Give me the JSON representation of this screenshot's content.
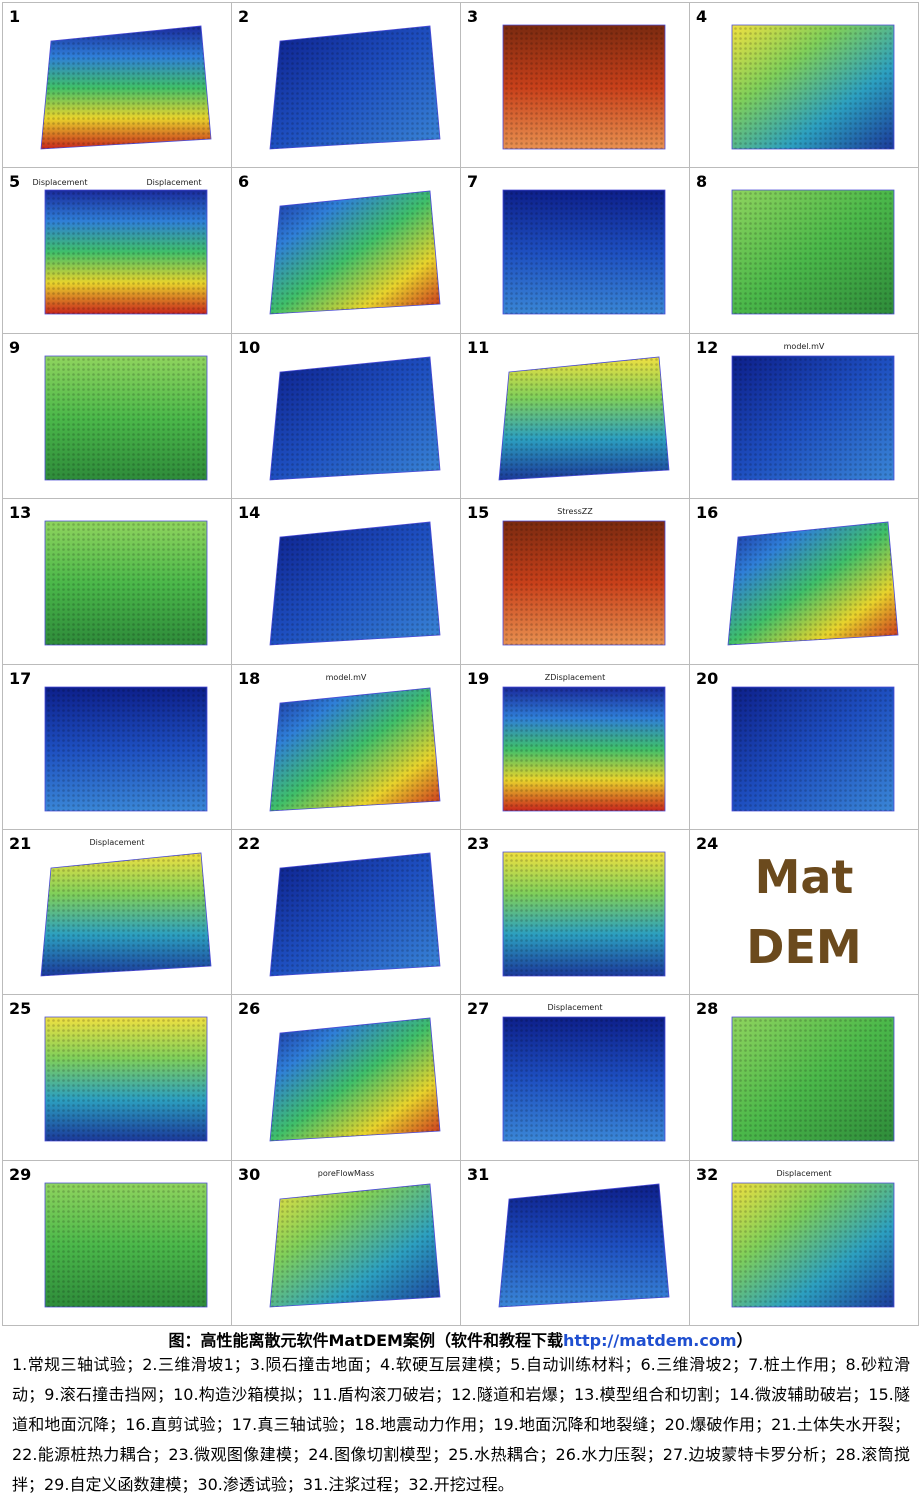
{
  "cells": [
    {
      "number": 1
    },
    {
      "number": 2
    },
    {
      "number": 3
    },
    {
      "number": 4
    },
    {
      "number": 5,
      "titles": [
        "Displacement",
        "Displacement"
      ]
    },
    {
      "number": 6
    },
    {
      "number": 7
    },
    {
      "number": 8
    },
    {
      "number": 9
    },
    {
      "number": 10
    },
    {
      "number": 11
    },
    {
      "number": 12,
      "titles": [
        "model.mV"
      ]
    },
    {
      "number": 13
    },
    {
      "number": 14
    },
    {
      "number": 15,
      "titles": [
        "StressZZ"
      ]
    },
    {
      "number": 16
    },
    {
      "number": 17
    },
    {
      "number": 18,
      "titles": [
        "model.mV"
      ]
    },
    {
      "number": 19,
      "titles": [
        "ZDisplacement"
      ]
    },
    {
      "number": 20
    },
    {
      "number": 21,
      "titles": [
        "Displacement"
      ]
    },
    {
      "number": 22
    },
    {
      "number": 23
    },
    {
      "number": 24,
      "titles": [
        "Mat",
        "DEM"
      ]
    },
    {
      "number": 25
    },
    {
      "number": 26
    },
    {
      "number": 27,
      "titles": [
        "Displacement"
      ]
    },
    {
      "number": 28
    },
    {
      "number": 29
    },
    {
      "number": 30,
      "titles": [
        "poreFlowMass"
      ]
    },
    {
      "number": 31
    },
    {
      "number": 32,
      "titles": [
        "Displacement"
      ]
    }
  ],
  "caption": {
    "title": "图：高性能离散元软件MatDEM案例（软件和教程下载",
    "link": "http://matdem.com",
    "end": "）"
  },
  "description": "1.常规三轴试验；2.三维滑坡1；3.陨石撞击地面；4.软硬互层建模；5.自动训练材料；6.三维滑坡2；7.桩土作用；8.砂粒滑动；9.滚石撞击挡网；10.构造沙箱模拟；11.盾构滚刀破岩；12.隧道和岩爆；13.模型组合和切割；14.微波辅助破岩；15.隧道和地面沉降；16.直剪试验；17.真三轴试验；18.地震动力作用；19.地面沉降和地裂缝；20.爆破作用；21.土体失水开裂；22.能源桩热力耦合；23.微观图像建模；24.图像切割模型；25.水热耦合；26.水力压裂；27.边坡蒙特卡罗分析；28.滚筒搅拌；29.自定义函数建模；30.渗透试验；31.注浆过程；32.开挖过程。"
}
